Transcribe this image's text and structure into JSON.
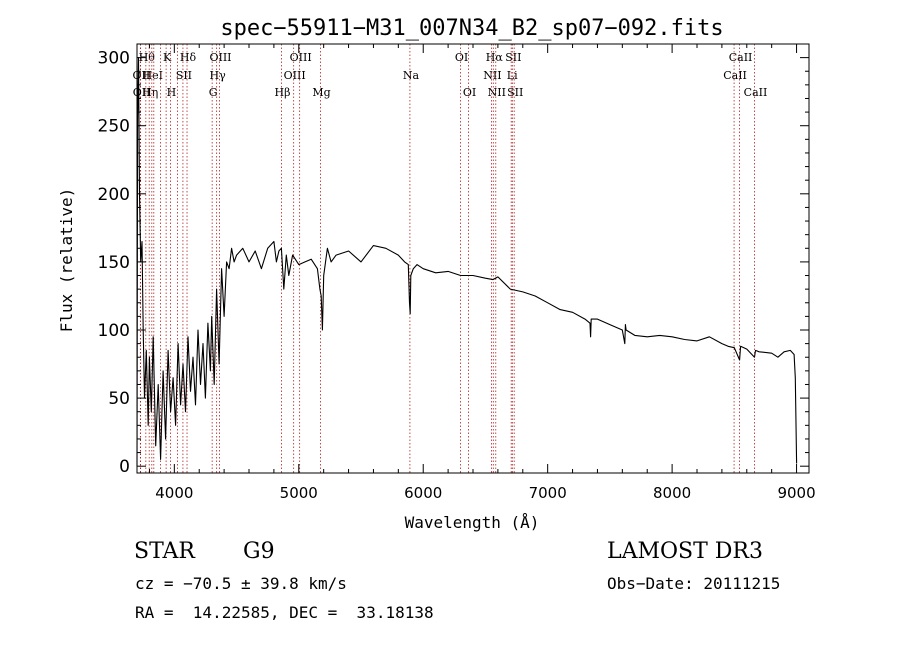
{
  "chart_data": {
    "type": "line",
    "title": "spec−55911−M31_007N34_B2_sp07−092.fits",
    "xlabel": "Wavelength (Å)",
    "ylabel": "Flux (relative)",
    "xlim": [
      3700,
      9100
    ],
    "ylim": [
      -5,
      310
    ],
    "x_ticks": [
      4000,
      5000,
      6000,
      7000,
      8000,
      9000
    ],
    "x_tick_labels": [
      "4000",
      "5000",
      "6000",
      "7000",
      "8000",
      "9000"
    ],
    "y_ticks": [
      0,
      50,
      100,
      150,
      200,
      250,
      300
    ],
    "y_tick_labels": [
      "0",
      "50",
      "100",
      "150",
      "200",
      "250",
      "300"
    ],
    "series": [
      {
        "name": "flux",
        "color": "#000000",
        "x": [
          3700,
          3705,
          3712,
          3720,
          3730,
          3740,
          3750,
          3760,
          3775,
          3790,
          3800,
          3815,
          3830,
          3850,
          3870,
          3890,
          3910,
          3930,
          3950,
          3970,
          3990,
          4010,
          4030,
          4050,
          4070,
          4090,
          4110,
          4130,
          4150,
          4170,
          4190,
          4210,
          4230,
          4250,
          4270,
          4290,
          4300,
          4320,
          4340,
          4360,
          4380,
          4400,
          4420,
          4440,
          4460,
          4480,
          4500,
          4550,
          4600,
          4650,
          4700,
          4750,
          4800,
          4820,
          4840,
          4860,
          4880,
          4900,
          4920,
          4950,
          5000,
          5050,
          5100,
          5150,
          5170,
          5180,
          5190,
          5200,
          5230,
          5260,
          5300,
          5400,
          5500,
          5600,
          5700,
          5800,
          5850,
          5880,
          5890,
          5895,
          5900,
          5920,
          5950,
          6000,
          6100,
          6200,
          6300,
          6400,
          6500,
          6560,
          6600,
          6700,
          6800,
          6900,
          7000,
          7100,
          7200,
          7300,
          7340,
          7345,
          7350,
          7400,
          7500,
          7600,
          7620,
          7625,
          7630,
          7700,
          7800,
          7900,
          8000,
          8100,
          8200,
          8300,
          8400,
          8450,
          8500,
          8542,
          8550,
          8600,
          8662,
          8670,
          8700,
          8800,
          8850,
          8900,
          8950,
          8980,
          8990,
          9000
        ],
        "y": [
          0,
          255,
          300,
          200,
          150,
          165,
          100,
          50,
          85,
          30,
          80,
          40,
          95,
          15,
          60,
          5,
          70,
          20,
          85,
          40,
          65,
          30,
          90,
          45,
          75,
          40,
          95,
          55,
          80,
          45,
          100,
          60,
          90,
          50,
          105,
          70,
          110,
          60,
          130,
          75,
          145,
          110,
          150,
          145,
          160,
          150,
          155,
          160,
          150,
          158,
          145,
          160,
          165,
          150,
          158,
          160,
          130,
          155,
          140,
          155,
          148,
          150,
          152,
          145,
          130,
          125,
          100,
          140,
          160,
          150,
          155,
          158,
          150,
          162,
          160,
          155,
          150,
          148,
          120,
          112,
          140,
          145,
          148,
          145,
          142,
          143,
          140,
          140,
          138,
          137,
          139,
          130,
          128,
          125,
          120,
          115,
          113,
          108,
          105,
          95,
          108,
          108,
          104,
          100,
          90,
          104,
          100,
          96,
          95,
          96,
          95,
          93,
          92,
          95,
          90,
          88,
          87,
          78,
          88,
          86,
          80,
          85,
          84,
          83,
          80,
          84,
          85,
          82,
          65,
          2
        ]
      }
    ],
    "line_markers": [
      {
        "wavelength": 3727,
        "label": "OII",
        "row": 1
      },
      {
        "wavelength": 3729,
        "label": "OII",
        "row": 2
      },
      {
        "wavelength": 3771,
        "label": "Hθ",
        "row": 0
      },
      {
        "wavelength": 3798,
        "label": "Hη",
        "row": 2
      },
      {
        "wavelength": 3819,
        "label": "HeI",
        "row": 1
      },
      {
        "wavelength": 3835,
        "label": "",
        "row": 0
      },
      {
        "wavelength": 3889,
        "label": "",
        "row": 0
      },
      {
        "wavelength": 3934,
        "label": "K",
        "row": 0
      },
      {
        "wavelength": 3969,
        "label": "H",
        "row": 2
      },
      {
        "wavelength": 4026,
        "label": "",
        "row": 0
      },
      {
        "wavelength": 4069,
        "label": "SII",
        "row": 1
      },
      {
        "wavelength": 4102,
        "label": "Hδ",
        "row": 0
      },
      {
        "wavelength": 4304,
        "label": "G",
        "row": 2
      },
      {
        "wavelength": 4340,
        "label": "Hγ",
        "row": 1
      },
      {
        "wavelength": 4363,
        "label": "OIII",
        "row": 0
      },
      {
        "wavelength": 4861,
        "label": "Hβ",
        "row": 2
      },
      {
        "wavelength": 4959,
        "label": "OIII",
        "row": 1
      },
      {
        "wavelength": 5007,
        "label": "OIII",
        "row": 0
      },
      {
        "wavelength": 5175,
        "label": "Mg",
        "row": 2
      },
      {
        "wavelength": 5893,
        "label": "Na",
        "row": 1
      },
      {
        "wavelength": 6300,
        "label": "OI",
        "row": 0
      },
      {
        "wavelength": 6364,
        "label": "OI",
        "row": 2
      },
      {
        "wavelength": 6548,
        "label": "NII",
        "row": 1
      },
      {
        "wavelength": 6563,
        "label": "Hα",
        "row": 0
      },
      {
        "wavelength": 6583,
        "label": "NII",
        "row": 2
      },
      {
        "wavelength": 6707,
        "label": "Li",
        "row": 1
      },
      {
        "wavelength": 6716,
        "label": "SII",
        "row": 0
      },
      {
        "wavelength": 6731,
        "label": "SII",
        "row": 2
      },
      {
        "wavelength": 8498,
        "label": "CaII",
        "row": 1
      },
      {
        "wavelength": 8542,
        "label": "CaII",
        "row": 0
      },
      {
        "wavelength": 8662,
        "label": "CaII",
        "row": 2
      }
    ]
  },
  "info": {
    "star_label": "STAR",
    "subclass": "G9",
    "survey": "LAMOST DR3",
    "cz_line": "cz = −70.5 ± 39.8 km/s",
    "obs_date": "Obs−Date: 20111215",
    "coords": "RA =  14.22585, DEC =  33.18138"
  }
}
